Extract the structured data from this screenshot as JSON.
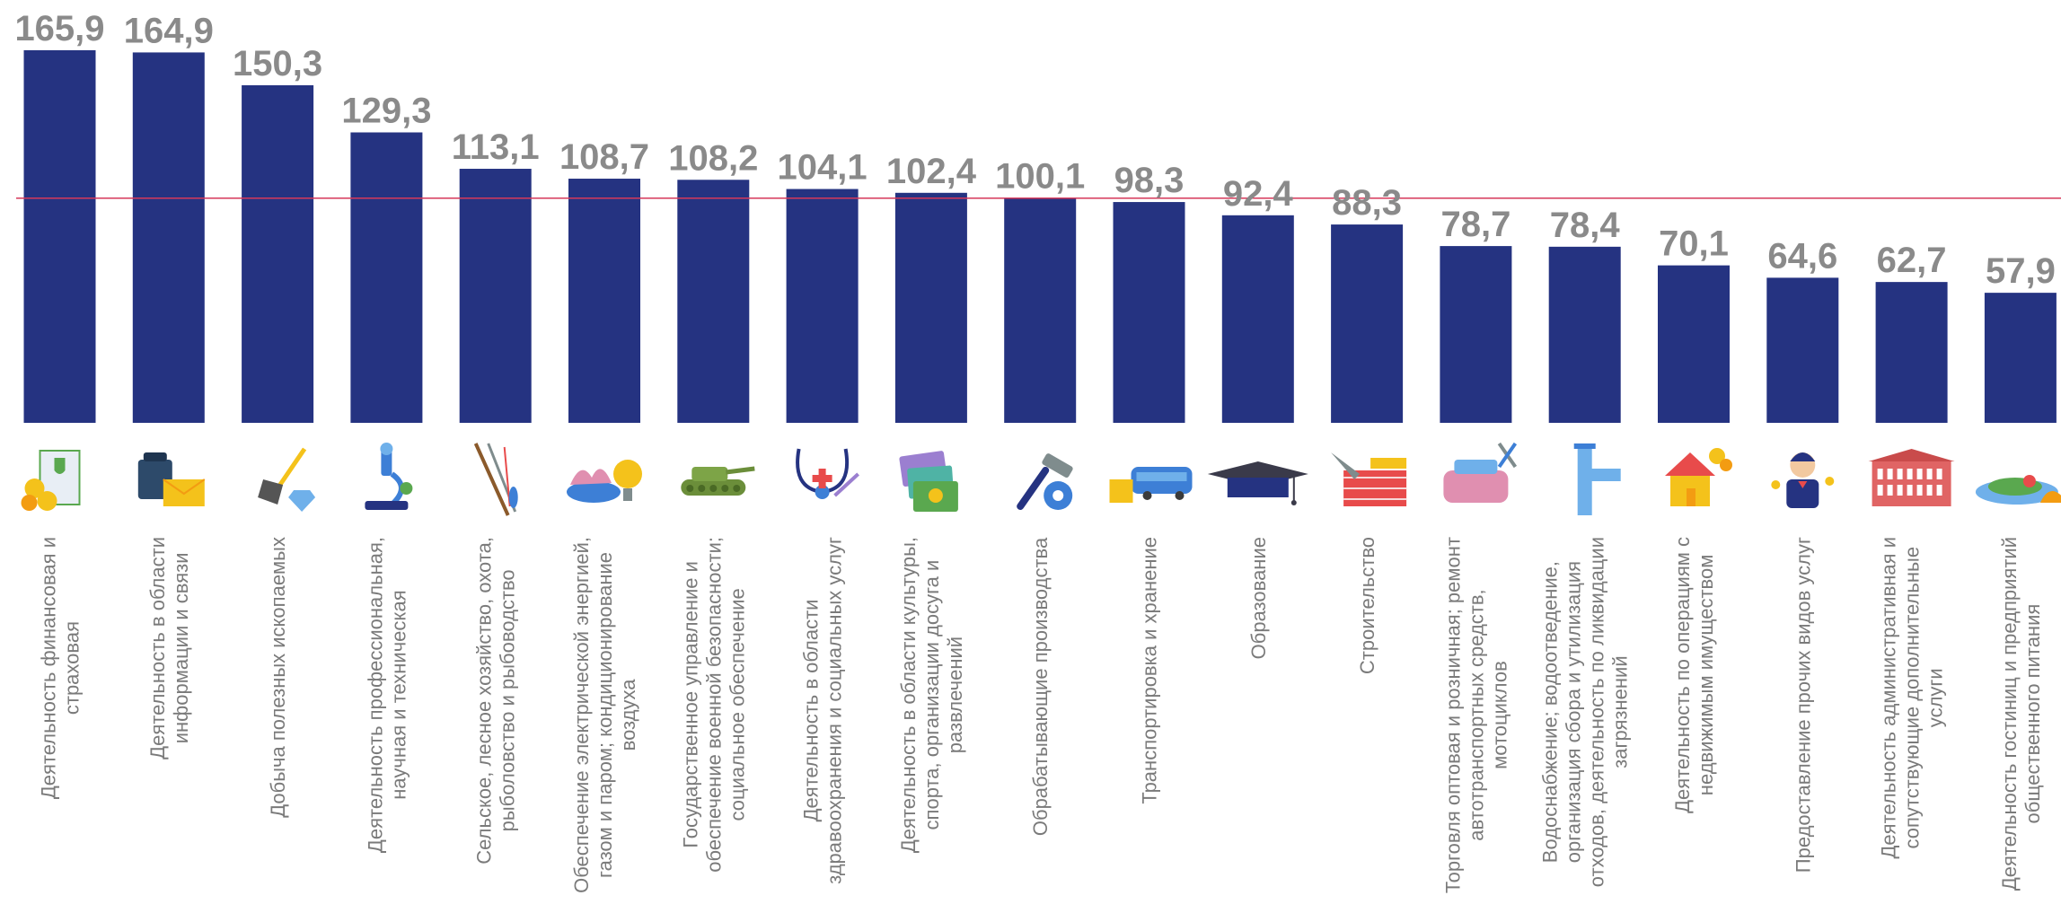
{
  "chart_data": {
    "type": "bar",
    "title": "",
    "xlabel": "",
    "ylabel": "",
    "ylim": [
      0,
      170
    ],
    "reference_line": 100,
    "grid": false,
    "categories": [
      [
        "Деятельность финансовая и",
        "страховая"
      ],
      [
        "Деятельность в области",
        "информации и связи"
      ],
      [
        "Добыча полезных ископаемых"
      ],
      [
        "Деятельность профессиональная,",
        "научная и техническая"
      ],
      [
        "Сельское, лесное хозяйство, охота,",
        "рыболовство и рыбоводство"
      ],
      [
        "Обеспечение электрической энергией,",
        "газом и паром; кондиционирование",
        "воздуха"
      ],
      [
        "Государственное управление и",
        "обеспечение военной безопасности;",
        "социальное обеспечение"
      ],
      [
        "Деятельность в области",
        "здравоохранения и социальных услуг"
      ],
      [
        "Деятельность в области культуры,",
        "спорта, организации досуга и",
        "развлечений"
      ],
      [
        "Обрабатывающие производства"
      ],
      [
        "Транспортировка и хранение"
      ],
      [
        "Образование"
      ],
      [
        "Строительство"
      ],
      [
        "Торговля оптовая и розничная; ремонт",
        "автотранспортных средств,",
        "мотоциклов"
      ],
      [
        "Водоснабжение; водоотведение,",
        "организация сбора и утилизация",
        "отходов, деятельность по ликвидации",
        "загрязнений"
      ],
      [
        "Деятельность по операциям с",
        "недвижимым имуществом"
      ],
      [
        "Предоставление прочих видов услуг"
      ],
      [
        "Деятельность административная и",
        "сопутствующие дополнительные",
        "услуги"
      ],
      [
        "Деятельность гостиниц и предприятий",
        "общественного питания"
      ]
    ],
    "values": [
      165.9,
      164.9,
      150.3,
      129.3,
      113.1,
      108.7,
      108.2,
      104.1,
      102.4,
      100.1,
      98.3,
      92.4,
      88.3,
      78.7,
      78.4,
      70.1,
      64.6,
      62.7,
      57.9
    ],
    "value_labels": [
      "165,9",
      "164,9",
      "150,3",
      "129,3",
      "113,1",
      "108,7",
      "108,2",
      "104,1",
      "102,4",
      "100,1",
      "98,3",
      "92,4",
      "88,3",
      "78,7",
      "78,4",
      "70,1",
      "64,6",
      "62,7",
      "57,9"
    ],
    "icons": [
      "finance-icon",
      "telephone-mail-icon",
      "shovel-diamond-icon",
      "microscope-icon",
      "fishing-rod-icon",
      "gas-burner-bulb-icon",
      "tank-icon",
      "stethoscope-icon",
      "theater-tickets-icon",
      "hammer-gear-icon",
      "bus-box-icon",
      "graduation-cap-icon",
      "brick-trowel-icon",
      "car-tools-icon",
      "water-pipe-icon",
      "house-coins-icon",
      "service-person-icon",
      "office-building-icon",
      "food-dish-icon"
    ],
    "colors": {
      "bar": "#253381",
      "value_label": "#8a8a8a",
      "category_label": "#7a7a7a",
      "reference_line": "#d6385a"
    }
  }
}
